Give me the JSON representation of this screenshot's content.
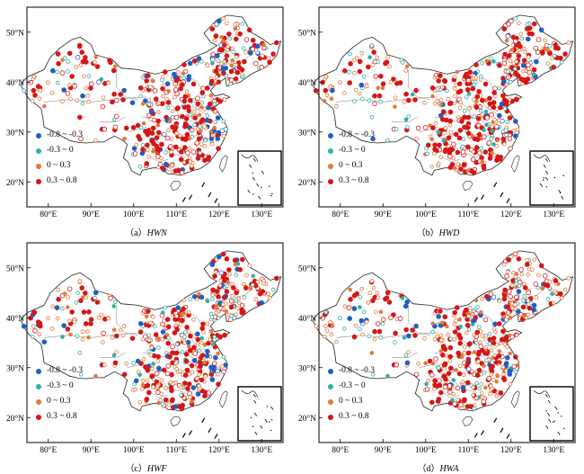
{
  "panels": [
    {
      "caption_prefix": "（a）",
      "abbr": "HWN"
    },
    {
      "caption_prefix": "（b）",
      "abbr": "HWD"
    },
    {
      "caption_prefix": "（c）",
      "abbr": "HWF"
    },
    {
      "caption_prefix": "（d）",
      "abbr": "HWA"
    }
  ],
  "lat_labels": [
    "50°N",
    "40°N",
    "30°N",
    "20°N"
  ],
  "lon_labels": [
    "80°E",
    "90°E",
    "100°E",
    "110°E",
    "120°E",
    "130°E"
  ],
  "legend": [
    {
      "label": "-0.8 ~ -0.3",
      "color": "#1f5fc4"
    },
    {
      "label": "-0.3 ~ 0",
      "color": "#2fb0a6"
    },
    {
      "label": "0 ~ 0.3",
      "color": "#e07a40"
    },
    {
      "label": "0.3 ~ 0.8",
      "color": "#d61616"
    }
  ]
}
